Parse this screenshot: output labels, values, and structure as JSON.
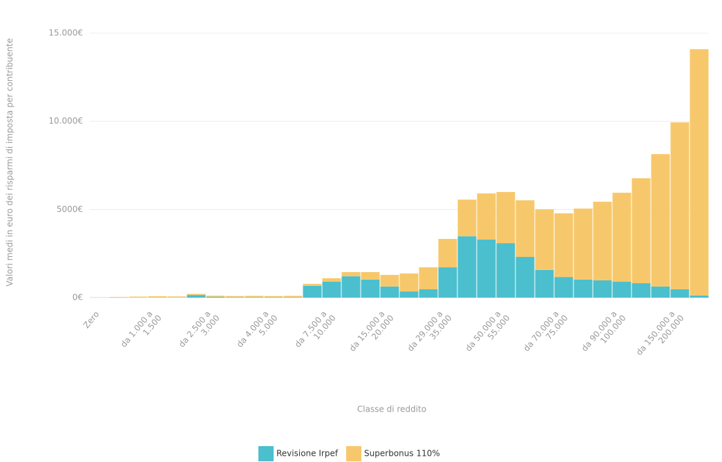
{
  "chart_data": {
    "type": "stacked_bar",
    "x_label": "Classe di reddito",
    "y_label": "Valori medi in euro dei risparmi di imposta per contribuente",
    "categories": [
      "Zero",
      null,
      null,
      "da 1.000 a 1.500",
      null,
      null,
      "da 2.500 a 3.000",
      null,
      null,
      "da 4.000 a 5.000",
      null,
      null,
      "da 7.500 a 10.000",
      null,
      null,
      "da 15.000 a 20.000",
      null,
      null,
      "da 29.000 a 35.000",
      null,
      null,
      "da 50.000 a 55.000",
      null,
      null,
      "da 70.000 a 75.000",
      null,
      null,
      "da 90.000 a 100.000",
      null,
      null,
      "da 150.000 a 200.000",
      null
    ],
    "series": [
      {
        "name": "Revisione Irpef",
        "color": "#4bbfce",
        "values": [
          0,
          0,
          0,
          0,
          10,
          150,
          50,
          30,
          30,
          30,
          20,
          670,
          900,
          1210,
          1020,
          630,
          350,
          470,
          1720,
          3480,
          3290,
          3090,
          2310,
          1570,
          1170,
          1020,
          980,
          900,
          820,
          630,
          470,
          120
        ]
      },
      {
        "name": "Superbonus 110%",
        "color": "#f7c86b",
        "values": [
          20,
          40,
          60,
          80,
          60,
          60,
          60,
          60,
          70,
          60,
          80,
          110,
          200,
          240,
          430,
          660,
          1020,
          1250,
          1610,
          2080,
          2620,
          2900,
          3210,
          3440,
          3610,
          4030,
          4460,
          5050,
          5950,
          7510,
          9470,
          13970
        ]
      }
    ],
    "ylim": [
      0,
      15000
    ],
    "yticks": [
      {
        "value": 0,
        "label": "0€"
      },
      {
        "value": 5000,
        "label": "5000€"
      },
      {
        "value": 10000,
        "label": "10.000€"
      },
      {
        "value": 15000,
        "label": "15.000€"
      }
    ],
    "grid": true,
    "legend": "bottom"
  }
}
